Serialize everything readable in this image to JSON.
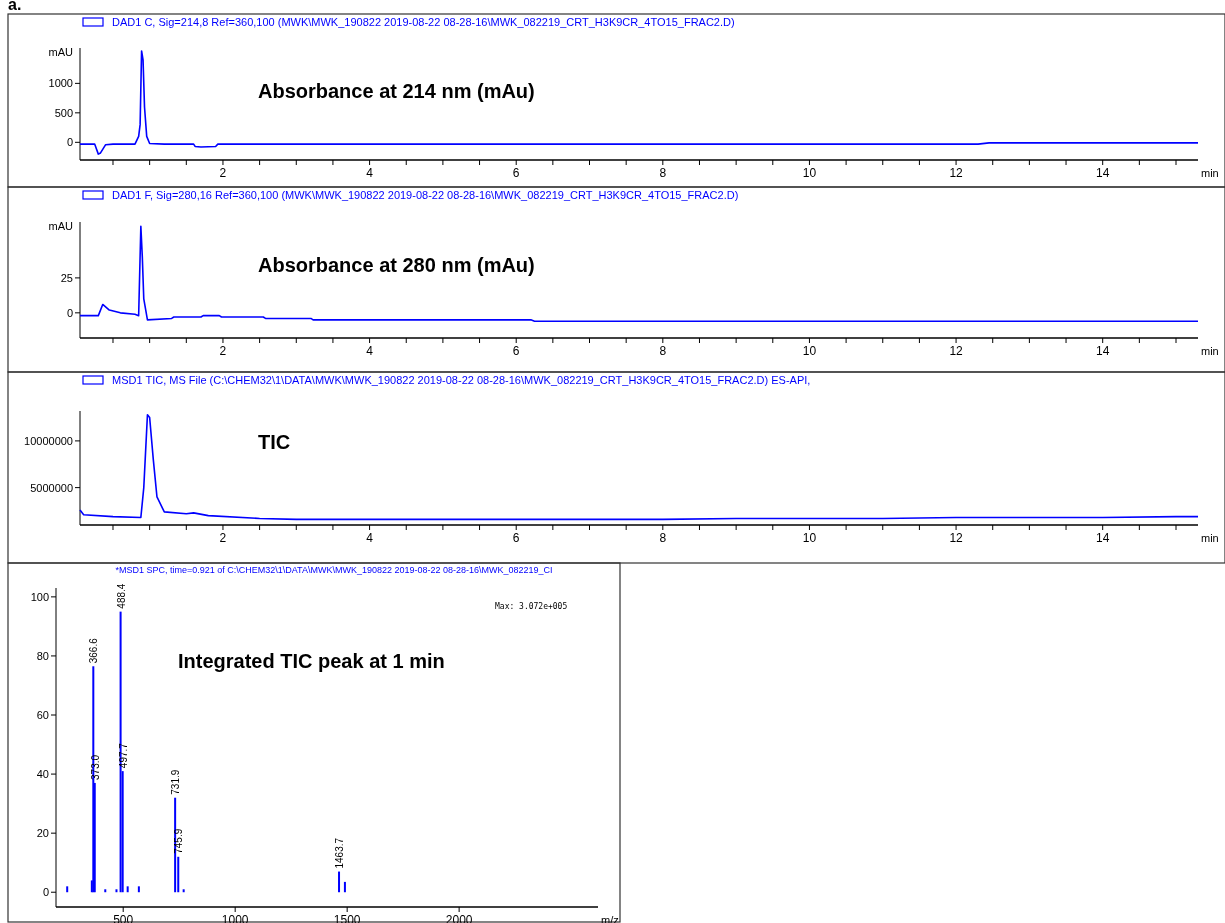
{
  "chart_data": [
    {
      "type": "line",
      "legend": "top left",
      "ylabel": "mAU",
      "xlabel": "min",
      "annotations": [
        "a.",
        "Absorbance at 214 nm (mAu)"
      ],
      "xlim": [
        0.05,
        15.3
      ],
      "ylim": [
        -300,
        1600
      ],
      "yticks": [
        0,
        500,
        1000
      ],
      "xticks": [
        {
          "value": 0.5,
          "label": null
        },
        {
          "value": 1,
          "label": null
        },
        {
          "value": 1.5,
          "label": null
        },
        2,
        {
          "value": 2.5,
          "label": null
        },
        {
          "value": 3,
          "label": null
        },
        {
          "value": 3.5,
          "label": null
        },
        4,
        {
          "value": 4.5,
          "label": null
        },
        {
          "value": 5,
          "label": null
        },
        {
          "value": 5.5,
          "label": null
        },
        6,
        {
          "value": 6.5,
          "label": null
        },
        {
          "value": 7,
          "label": null
        },
        {
          "value": 7.5,
          "label": null
        },
        8,
        {
          "value": 8.5,
          "label": null
        },
        {
          "value": 9,
          "label": null
        },
        {
          "value": 9.5,
          "label": null
        },
        10,
        {
          "value": 10.5,
          "label": null
        },
        {
          "value": 11,
          "label": null
        },
        {
          "value": 11.5,
          "label": null
        },
        12,
        {
          "value": 12.5,
          "label": null
        },
        {
          "value": 13,
          "label": null
        },
        {
          "value": 13.5,
          "label": null
        },
        14,
        {
          "value": 14.5,
          "label": null
        },
        {
          "value": 15,
          "label": null
        }
      ],
      "series": [
        {
          "name": "DAD1 C, Sig=214,8 Ref=360,100 (MWK\\MWK_190822 2019-08-22 08-28-16\\MWK_082219_CRT_H3K9CR_4TO15_FRAC2.D)",
          "color": "#0000ff",
          "x": [
            0.05,
            0.25,
            0.3,
            0.33,
            0.4,
            0.5,
            0.8,
            0.85,
            0.87,
            0.89,
            0.91,
            0.93,
            0.96,
            1.0,
            1.2,
            1.6,
            1.62,
            1.7,
            1.9,
            1.93,
            12.3,
            12.45,
            15.3
          ],
          "values": [
            -30,
            -30,
            -200,
            -180,
            -40,
            -30,
            -30,
            100,
            300,
            1550,
            1400,
            600,
            100,
            -20,
            -30,
            -30,
            -70,
            -80,
            -70,
            -30,
            -30,
            -10,
            -10
          ]
        }
      ]
    },
    {
      "type": "line",
      "legend": "top left",
      "ylabel": "mAU",
      "xlabel": "min",
      "annotations": [
        "Absorbance at 280 nm (mAu)"
      ],
      "xlim": [
        0.05,
        15.3
      ],
      "ylim": [
        -18,
        65
      ],
      "yticks": [
        0,
        25
      ],
      "xticks": [
        {
          "value": 0.5,
          "label": null
        },
        {
          "value": 1,
          "label": null
        },
        {
          "value": 1.5,
          "label": null
        },
        2,
        {
          "value": 2.5,
          "label": null
        },
        {
          "value": 3,
          "label": null
        },
        {
          "value": 3.5,
          "label": null
        },
        4,
        {
          "value": 4.5,
          "label": null
        },
        {
          "value": 5,
          "label": null
        },
        {
          "value": 5.5,
          "label": null
        },
        6,
        {
          "value": 6.5,
          "label": null
        },
        {
          "value": 7,
          "label": null
        },
        {
          "value": 7.5,
          "label": null
        },
        8,
        {
          "value": 8.5,
          "label": null
        },
        {
          "value": 9,
          "label": null
        },
        {
          "value": 9.5,
          "label": null
        },
        10,
        {
          "value": 10.5,
          "label": null
        },
        {
          "value": 11,
          "label": null
        },
        {
          "value": 11.5,
          "label": null
        },
        12,
        {
          "value": 12.5,
          "label": null
        },
        {
          "value": 13,
          "label": null
        },
        {
          "value": 13.5,
          "label": null
        },
        14,
        {
          "value": 14.5,
          "label": null
        },
        {
          "value": 15,
          "label": null
        }
      ],
      "series": [
        {
          "name": "DAD1 F, Sig=280,16 Ref=360,100 (MWK\\MWK_190822 2019-08-22 08-28-16\\MWK_082219_CRT_H3K9CR_4TO15_FRAC2.D)",
          "color": "#0000ff",
          "x": [
            0.05,
            0.3,
            0.36,
            0.45,
            0.6,
            0.8,
            0.85,
            0.88,
            0.9,
            0.92,
            0.97,
            1.3,
            1.33,
            1.7,
            1.73,
            1.95,
            1.98,
            2.55,
            2.58,
            3.2,
            3.23,
            6.2,
            6.25,
            15.3
          ],
          "values": [
            -2,
            -2,
            6,
            2,
            0,
            -1,
            -2,
            62,
            40,
            10,
            -5,
            -4,
            -3,
            -3,
            -2,
            -2,
            -3,
            -3,
            -4,
            -4,
            -5,
            -5,
            -6,
            -6
          ]
        }
      ]
    },
    {
      "type": "line",
      "legend": "top left",
      "xlabel": "min",
      "annotations": [
        "TIC"
      ],
      "xlim": [
        0.05,
        15.3
      ],
      "ylim": [
        1000000,
        13200000
      ],
      "yticks": [
        5000000,
        10000000
      ],
      "xticks": [
        {
          "value": 0.5,
          "label": null
        },
        {
          "value": 1,
          "label": null
        },
        {
          "value": 1.5,
          "label": null
        },
        2,
        {
          "value": 2.5,
          "label": null
        },
        {
          "value": 3,
          "label": null
        },
        {
          "value": 3.5,
          "label": null
        },
        4,
        {
          "value": 4.5,
          "label": null
        },
        {
          "value": 5,
          "label": null
        },
        {
          "value": 5.5,
          "label": null
        },
        6,
        {
          "value": 6.5,
          "label": null
        },
        {
          "value": 7,
          "label": null
        },
        {
          "value": 7.5,
          "label": null
        },
        8,
        {
          "value": 8.5,
          "label": null
        },
        {
          "value": 9,
          "label": null
        },
        {
          "value": 9.5,
          "label": null
        },
        10,
        {
          "value": 10.5,
          "label": null
        },
        {
          "value": 11,
          "label": null
        },
        {
          "value": 11.5,
          "label": null
        },
        12,
        {
          "value": 12.5,
          "label": null
        },
        {
          "value": 13,
          "label": null
        },
        {
          "value": 13.5,
          "label": null
        },
        14,
        {
          "value": 14.5,
          "label": null
        },
        {
          "value": 15,
          "label": null
        }
      ],
      "series": [
        {
          "name": "MSD1 TIC, MS File (C:\\CHEM32\\1\\DATA\\MWK\\MWK_190822 2019-08-22 08-28-16\\MWK_082219_CRT_H3K9CR_4TO15_FRAC2.D)   ES-API,",
          "color": "#0000ff",
          "x": [
            0.05,
            0.1,
            0.5,
            0.88,
            0.92,
            0.97,
            1.0,
            1.05,
            1.1,
            1.2,
            1.5,
            1.6,
            1.8,
            2.5,
            3,
            4,
            5,
            6,
            7,
            8,
            9,
            10,
            11,
            12,
            13,
            14,
            15,
            15.3
          ],
          "values": [
            2600000,
            2100000,
            1900000,
            1800000,
            5000000,
            12800000,
            12500000,
            8000000,
            4000000,
            2400000,
            2200000,
            2300000,
            2000000,
            1700000,
            1600000,
            1600000,
            1600000,
            1600000,
            1600000,
            1600000,
            1700000,
            1700000,
            1700000,
            1800000,
            1800000,
            1800000,
            1900000,
            1900000
          ]
        }
      ]
    },
    {
      "type": "bar",
      "title": "*MSD1 SPC, time=0.921 of C:\\CHEM32\\1\\DATA\\MWK\\MWK_190822 2019-08-22 08-28-16\\MWK_082219_CI",
      "xlabel": "m/z",
      "annotations": [
        "Integrated TIC peak at 1 min",
        "Max: 3.072e+005",
        {
          "text": "366.6",
          "x": 366.6,
          "y": 76.5
        },
        {
          "text": "373.0",
          "x": 373.0,
          "y": 37
        },
        {
          "text": "488.4",
          "x": 488.4,
          "y": 95
        },
        {
          "text": "497.7",
          "x": 497.7,
          "y": 41
        },
        {
          "text": "731.9",
          "x": 731.9,
          "y": 32
        },
        {
          "text": "745.9",
          "x": 745.9,
          "y": 12
        },
        {
          "text": "1463.7",
          "x": 1463.7,
          "y": 7
        }
      ],
      "xlim": [
        200,
        2620
      ],
      "xticks": [
        500,
        1000,
        1500,
        2000
      ],
      "ylim": [
        -5,
        103
      ],
      "yticks": [
        0,
        20,
        40,
        60,
        80,
        100
      ],
      "series": [
        {
          "color": "#0000ff",
          "x": [
            250,
            360,
            366.6,
            373.0,
            420,
            470,
            488.4,
            497.7,
            520,
            570,
            731.9,
            745.9,
            770,
            1463.7,
            1490
          ],
          "values": [
            2,
            4,
            76.5,
            37,
            1,
            1,
            95,
            41,
            2,
            2,
            32,
            12,
            1,
            7,
            3.5
          ]
        }
      ]
    }
  ]
}
